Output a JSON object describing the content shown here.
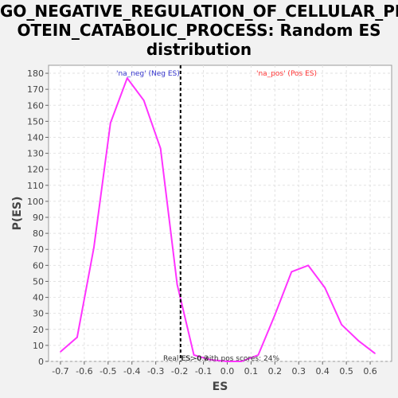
{
  "chart_data": {
    "type": "line",
    "title_lines": [
      "GO_NEGATIVE_REGULATION_OF_CELLULAR_PR",
      "OTEIN_CATABOLIC_PROCESS: Random ES",
      "distribution"
    ],
    "xlabel": "ES",
    "ylabel": "P(ES)",
    "xlim": [
      -0.75,
      0.69
    ],
    "ylim": [
      0,
      185
    ],
    "xticks": [
      -0.7,
      -0.6,
      -0.5,
      -0.4,
      -0.3,
      -0.2,
      -0.1,
      0.0,
      0.1,
      0.2,
      0.3,
      0.4,
      0.5,
      0.6
    ],
    "xtick_labels": [
      "-0.7",
      "-0.6",
      "-0.5",
      "-0.4",
      "-0.3",
      "-0.2",
      "-0.1",
      "0.0",
      "0.1",
      "0.2",
      "0.3",
      "0.4",
      "0.5",
      "0.6"
    ],
    "yticks": [
      0,
      10,
      20,
      30,
      40,
      50,
      60,
      70,
      80,
      90,
      100,
      110,
      120,
      130,
      140,
      150,
      160,
      170,
      180
    ],
    "grid": true,
    "series": [
      {
        "color": "#ff33ff",
        "points": [
          [
            -0.7,
            6
          ],
          [
            -0.63,
            15
          ],
          [
            -0.56,
            71
          ],
          [
            -0.49,
            149
          ],
          [
            -0.42,
            177
          ],
          [
            -0.35,
            163
          ],
          [
            -0.28,
            133
          ],
          [
            -0.21,
            48
          ],
          [
            -0.14,
            4
          ],
          [
            -0.07,
            1
          ],
          [
            0.0,
            0
          ],
          [
            0.06,
            0
          ],
          [
            0.13,
            4
          ],
          [
            0.2,
            29
          ],
          [
            0.27,
            56
          ],
          [
            0.34,
            60
          ],
          [
            0.41,
            46
          ],
          [
            0.48,
            23
          ],
          [
            0.55,
            13
          ],
          [
            0.62,
            5
          ]
        ]
      }
    ],
    "vline": {
      "x": -0.196,
      "style": "dashed",
      "color": "#000000"
    },
    "annotations": {
      "neg_label": {
        "text": "'na_neg' (Neg ES)",
        "color": "#3333cc"
      },
      "pos_label": {
        "text": "'na_pos' (Pos ES)",
        "color": "#ff3333"
      },
      "bottom_text_a": "Real ES: -0.2",
      "bottom_text_b": "ES>0 with pos scores: 24%"
    }
  }
}
